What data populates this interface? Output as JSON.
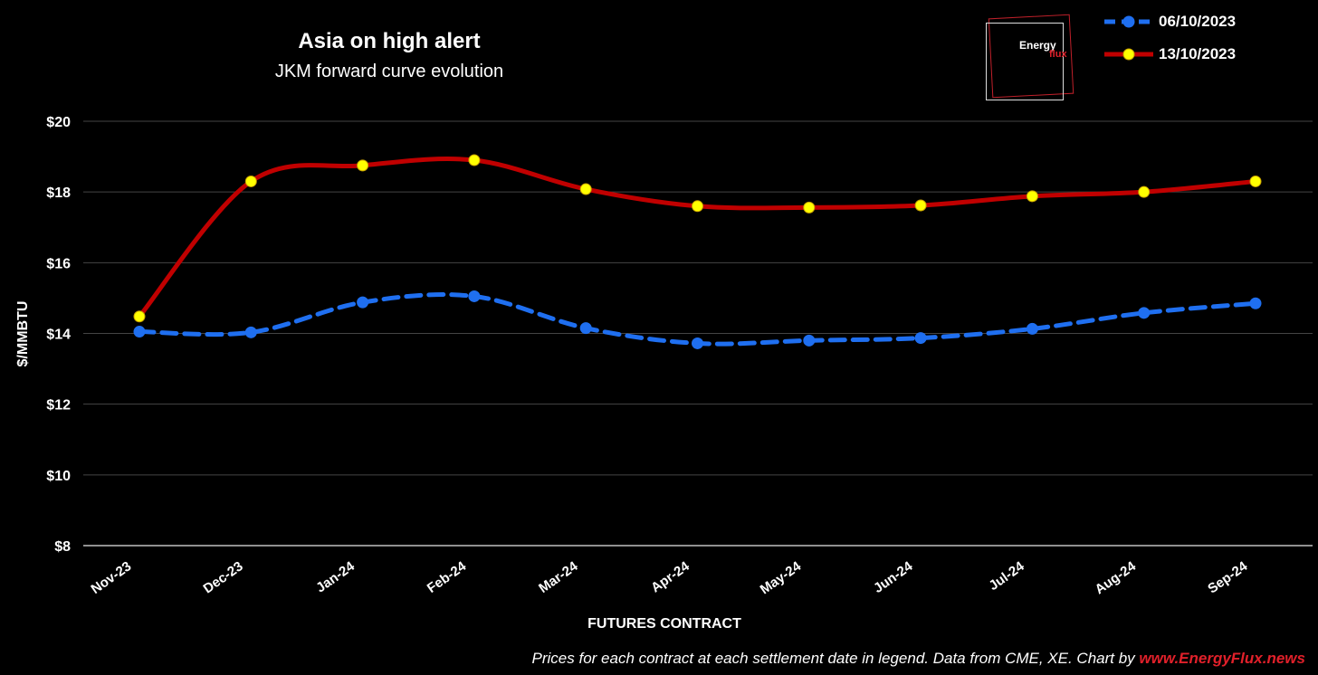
{
  "chart_data": {
    "type": "line",
    "title": "Asia on high alert",
    "subtitle": "JKM forward curve evolution",
    "xlabel": "FUTURES CONTRACT",
    "ylabel": "$/MMBTU",
    "ylim": [
      8,
      20
    ],
    "yticks": [
      8,
      10,
      12,
      14,
      16,
      18,
      20
    ],
    "ytick_labels": [
      "$8",
      "$10",
      "$12",
      "$14",
      "$16",
      "$18",
      "$20"
    ],
    "categories": [
      "Nov-23",
      "Dec-23",
      "Jan-24",
      "Feb-24",
      "Mar-24",
      "Apr-24",
      "May-24",
      "Jun-24",
      "Jul-24",
      "Aug-24",
      "Sep-24"
    ],
    "grid": true,
    "legend": "top-right",
    "series": [
      {
        "name": "06/10/2023",
        "color": "#1f6ff0",
        "marker_color": "#1f6ff0",
        "style": "dashed",
        "values": [
          14.05,
          14.03,
          14.88,
          15.05,
          14.15,
          13.72,
          13.8,
          13.87,
          14.13,
          14.58,
          14.85
        ]
      },
      {
        "name": "13/10/2023",
        "color": "#c00000",
        "marker_color": "#ffff00",
        "style": "solid",
        "values": [
          14.48,
          18.3,
          18.75,
          18.9,
          18.08,
          17.6,
          17.56,
          17.62,
          17.88,
          18.0,
          18.3
        ]
      }
    ]
  },
  "logo": {
    "line1": "Energy",
    "line2": "flux"
  },
  "footer": {
    "text": "Prices for each contract at each settlement date in legend. Data from CME, XE. Chart by ",
    "link": "www.EnergyFlux.news"
  }
}
